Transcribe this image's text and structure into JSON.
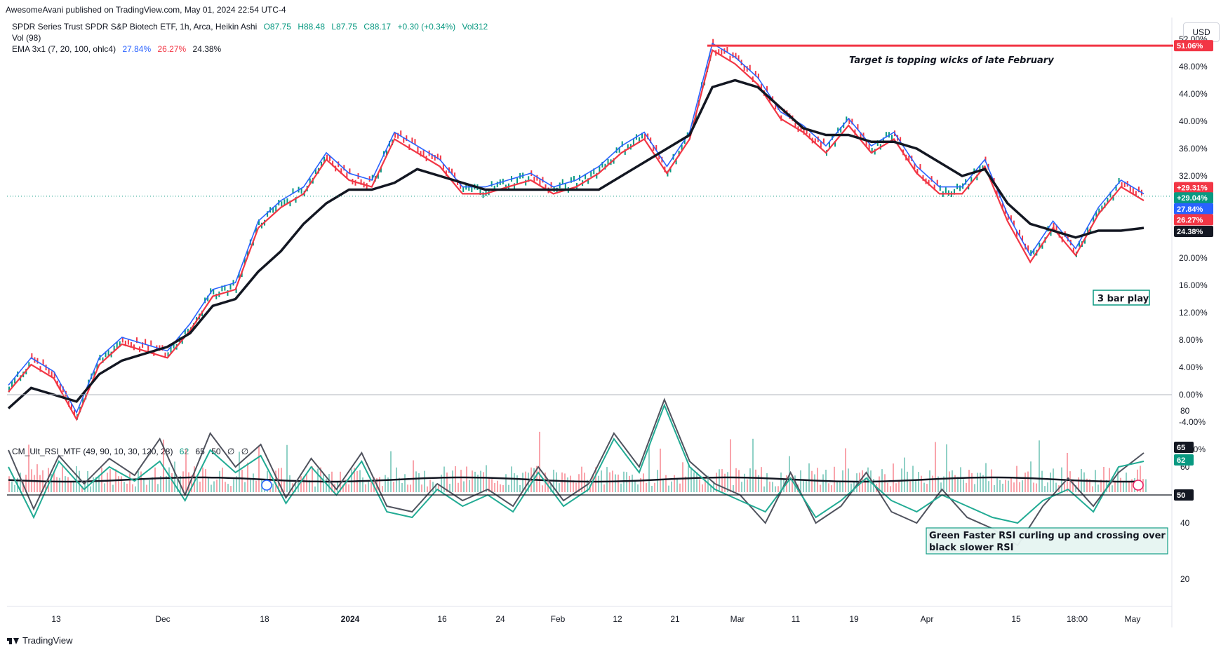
{
  "header": {
    "published_note": "AwesomeAvani published on TradingView.com, May 01, 2024 22:54 UTC-4"
  },
  "legend": {
    "symbol_title": "SPDR Series Trust SPDR S&P Biotech ETF, 1h, Arca, Heikin Ashi",
    "ohlc": {
      "O": "O87.75",
      "H": "H88.48",
      "L": "L87.75",
      "C": "C88.17",
      "change": "+0.30 (+0.34%)",
      "vol": "Vol312"
    },
    "vol_label": "Vol (98)",
    "ema_label": "EMA 3x1 (7, 20, 100, ohlc4)",
    "ema_values": [
      "27.84%",
      "26.27%",
      "24.38%"
    ],
    "rsi_label": "CM_Ult_RSI_MTF (49, 90, 10, 30, 120, 28)",
    "rsi_values": [
      "62",
      "65",
      "50",
      "∅",
      "∅"
    ]
  },
  "toolbar": {
    "currency_button": "USD"
  },
  "footer": {
    "brand": "TradingView"
  },
  "colors": {
    "fast_ema": "#2962ff",
    "mid_ema": "#f23645",
    "slow_ema": "#131722",
    "up_candle": "#089981",
    "down_candle": "#f23645",
    "rsi_fast": "#22ab94",
    "rsi_slow": "#50535e",
    "target_line": "#f23645"
  },
  "chart_data": [
    {
      "type": "line",
      "title": "",
      "y_unit": "%",
      "ylim": [
        -10,
        53
      ],
      "y_ticks": [
        "52.00%",
        "48.00%",
        "44.00%",
        "40.00%",
        "36.00%",
        "32.00%",
        "20.00%",
        "16.00%",
        "12.00%",
        "8.00%",
        "4.00%",
        "0.00%",
        "-4.00%",
        "-8.00%"
      ],
      "x_ticks": [
        "13",
        "Dec",
        "18",
        "2024",
        "16",
        "24",
        "Feb",
        "12",
        "21",
        "Mar",
        "11",
        "19",
        "Apr",
        "15",
        "18:00",
        "May"
      ],
      "series": [
        {
          "name": "",
          "role": "price",
          "y_approx": [
            1,
            5,
            3,
            -3,
            5,
            8,
            7,
            6,
            10,
            15,
            16,
            25,
            28,
            30,
            35,
            32,
            31,
            38,
            36,
            34,
            30,
            30,
            31,
            32,
            30,
            31,
            33,
            36,
            38,
            33,
            38,
            51,
            49,
            46,
            41,
            39,
            36,
            40,
            36,
            38,
            33,
            30,
            30,
            34,
            26,
            20,
            25,
            21,
            27,
            31,
            29
          ]
        },
        {
          "name": "",
          "role": "ema_slow",
          "y_approx": [
            -2,
            1,
            0,
            -1,
            3,
            5,
            6,
            7,
            9,
            13,
            14,
            18,
            21,
            25,
            28,
            30,
            30,
            31,
            33,
            32,
            31,
            30,
            30,
            30,
            30,
            30,
            30,
            32,
            34,
            36,
            38,
            45,
            46,
            45,
            42,
            39,
            38,
            38,
            37,
            37,
            36,
            34,
            32,
            33,
            28,
            25,
            24,
            23,
            24,
            24,
            24.4
          ]
        }
      ],
      "last_values": {
        "price": "+29.31%",
        "close": "+29.04%",
        "ema_fast": "27.84%",
        "ema_mid": "26.27%",
        "ema_slow": "24.38%",
        "target": "51.06%"
      },
      "annotations": [
        {
          "text": "Target is topping wicks of late February",
          "value": 51.06
        },
        {
          "text": "3 bar play"
        }
      ]
    },
    {
      "type": "line",
      "title": "",
      "ylim": [
        20,
        85
      ],
      "y_ticks": [
        "80",
        "60",
        "40",
        "20"
      ],
      "levels": [
        50
      ],
      "series": [
        {
          "name": "",
          "role": "fast",
          "y_approx": [
            60,
            42,
            62,
            52,
            60,
            55,
            62,
            48,
            66,
            58,
            64,
            47,
            60,
            50,
            62,
            44,
            42,
            52,
            46,
            50,
            44,
            58,
            46,
            52,
            70,
            58,
            82,
            60,
            52,
            48,
            44,
            56,
            42,
            48,
            56,
            48,
            44,
            50,
            46,
            42,
            40,
            48,
            52,
            44,
            60,
            62
          ]
        },
        {
          "name": "",
          "role": "slow",
          "y_approx": [
            66,
            45,
            64,
            54,
            63,
            57,
            70,
            50,
            72,
            60,
            68,
            49,
            63,
            52,
            65,
            46,
            44,
            54,
            48,
            52,
            46,
            60,
            48,
            54,
            72,
            60,
            84,
            62,
            54,
            50,
            40,
            58,
            40,
            46,
            58,
            44,
            40,
            52,
            42,
            38,
            32,
            46,
            56,
            46,
            58,
            65
          ]
        }
      ],
      "last_values": {
        "slow": "65",
        "fast": "62",
        "level": "50"
      },
      "annotations": [
        {
          "text": "Green Faster RSI curling up and crossing over black slower RSI"
        }
      ]
    }
  ]
}
